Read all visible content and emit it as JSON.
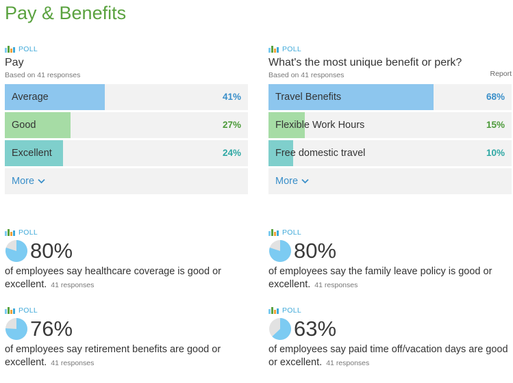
{
  "page": {
    "title": "Pay & Benefits"
  },
  "colors": {
    "blue": "#8dc6ee",
    "green": "#a6dca5",
    "teal": "#7fcfcc",
    "pie": "#7ccbf2",
    "pie_bg": "#e2e2e2"
  },
  "polls": [
    {
      "tag": "POLL",
      "question": "Pay",
      "responses": "Based on 41 responses",
      "report": "",
      "options": [
        {
          "label": "Average",
          "percent": 41,
          "display": "41%"
        },
        {
          "label": "Good",
          "percent": 27,
          "display": "27%"
        },
        {
          "label": "Excellent",
          "percent": 24,
          "display": "24%"
        }
      ],
      "more_label": "More"
    },
    {
      "tag": "POLL",
      "question": "What's the most unique benefit or perk?",
      "responses": "Based on 41 responses",
      "report": "Report",
      "options": [
        {
          "label": "Travel Benefits",
          "percent": 68,
          "display": "68%"
        },
        {
          "label": "Flexible Work Hours",
          "percent": 15,
          "display": "15%"
        },
        {
          "label": "Free domestic travel",
          "percent": 10,
          "display": "10%"
        }
      ],
      "more_label": "More"
    }
  ],
  "stats": [
    {
      "tag": "POLL",
      "percent": 80,
      "display": "80%",
      "text": "of employees say healthcare coverage is good or excellent.",
      "responses": "41 responses"
    },
    {
      "tag": "POLL",
      "percent": 80,
      "display": "80%",
      "text": "of employees say the family leave policy is good or excellent.",
      "responses": "41 responses"
    },
    {
      "tag": "POLL",
      "percent": 76,
      "display": "76%",
      "text": "of employees say retirement benefits are good or excellent.",
      "responses": "41 responses"
    },
    {
      "tag": "POLL",
      "percent": 63,
      "display": "63%",
      "text": "of employees say paid time off/vacation days are good or excellent.",
      "responses": "41 responses"
    }
  ]
}
